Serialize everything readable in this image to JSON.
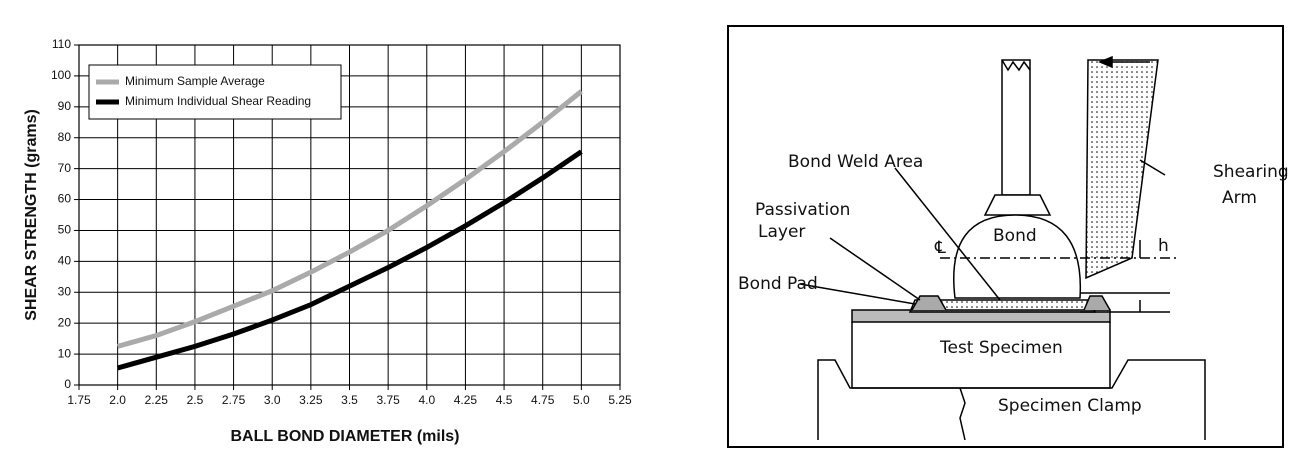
{
  "chart_data": {
    "type": "line",
    "x_label": "BALL BOND DIAMETER (mils)",
    "y_label": "SHEAR STRENGTH (grams)",
    "x": [
      2.0,
      2.25,
      2.5,
      2.75,
      3.0,
      3.25,
      3.5,
      3.75,
      4.0,
      4.25,
      4.5,
      4.75,
      5.0
    ],
    "series": [
      {
        "name": "Minimum Sample Average",
        "color": "#aaaaaa",
        "values": [
          12.5,
          16,
          20.5,
          25.5,
          30.5,
          36.5,
          43,
          50,
          58,
          66.5,
          75.5,
          85,
          95
        ]
      },
      {
        "name": "Minimum Individual Shear Reading",
        "color": "#000000",
        "values": [
          5.5,
          9,
          12.5,
          16.5,
          21,
          26,
          32,
          38,
          44.5,
          51.5,
          59,
          67,
          75.5
        ]
      }
    ],
    "xlim": [
      1.75,
      5.25
    ],
    "xticks": [
      1.75,
      {
        "value": 2,
        "label": "2.0"
      },
      2.25,
      2.5,
      2.75,
      {
        "value": 3,
        "label": "3.0"
      },
      3.25,
      3.5,
      3.75,
      {
        "value": 4,
        "label": "4.0"
      },
      4.25,
      4.5,
      4.75,
      {
        "value": 5,
        "label": "5.0"
      },
      5.25
    ],
    "ylim": [
      0,
      110
    ],
    "yticks": [
      0,
      10,
      20,
      30,
      40,
      50,
      60,
      70,
      80,
      90,
      100,
      110
    ],
    "grid": true,
    "legend": "upper left"
  },
  "diagram": {
    "labels": [
      "Bond Weld Area",
      "Shearing",
      "Arm",
      "Passivation",
      "Layer",
      "Bond",
      "h",
      "Bond Pad",
      "Test Specimen",
      "Specimen Clamp"
    ]
  }
}
